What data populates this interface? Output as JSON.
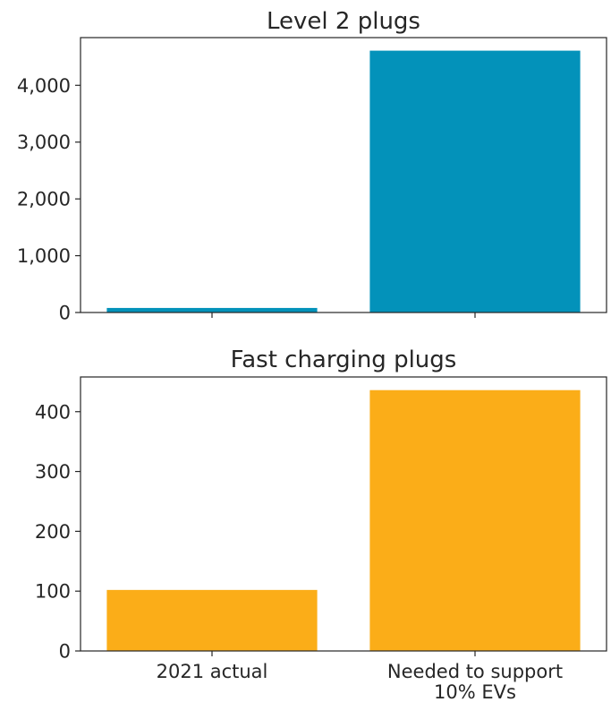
{
  "chart_data": [
    {
      "type": "bar",
      "title": "Level 2 plugs",
      "categories": [
        "2021 actual",
        "Needed to support 10% EVs"
      ],
      "values": [
        80,
        4610
      ],
      "ylim": [
        0,
        4840
      ],
      "yticks": [
        0,
        1000,
        2000,
        3000,
        4000
      ],
      "ytick_labels": [
        "0",
        "1,000",
        "2,000",
        "3,000",
        "4,000"
      ],
      "show_xtick_labels": false,
      "color": "#0392BA",
      "grid": false
    },
    {
      "type": "bar",
      "title": "Fast charging plugs",
      "categories": [
        "2021 actual",
        "Needed to support 10% EVs"
      ],
      "category_label_lines": [
        [
          "2021 actual"
        ],
        [
          "Needed to support",
          "10% EVs"
        ]
      ],
      "values": [
        102,
        436
      ],
      "ylim": [
        0,
        458
      ],
      "yticks": [
        0,
        100,
        200,
        300,
        400
      ],
      "ytick_labels": [
        "0",
        "100",
        "200",
        "300",
        "400"
      ],
      "show_xtick_labels": true,
      "color": "#FBAD18",
      "grid": false
    }
  ]
}
